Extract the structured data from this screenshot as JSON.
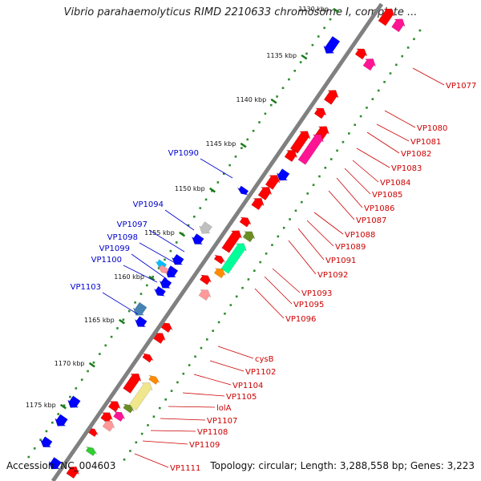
{
  "title": "Vibrio parahaemolyticus RIMD 2210633 chromosome I, complete ...",
  "footer": {
    "accession": "Accession: NC_004603",
    "summary": "Topology: circular; Length: 3,288,558 bp; Genes: 3,223"
  },
  "colors": {
    "backbone": "#808080",
    "tick": "#2e8b2e",
    "forward_gene": "#ff0000",
    "reverse_gene": "#0000ff",
    "forward_label": "#cc0000",
    "reverse_label": "#0000cc",
    "other_gene_colors": [
      "#ff1493",
      "#00ff99",
      "#ff8c00",
      "#6b8e23",
      "#f0e68c",
      "#ff9999",
      "#4682b4",
      "#c0c0c0",
      "#00bfff",
      "#32cd32"
    ]
  },
  "scale": {
    "unit": "kbp",
    "ticks": [
      "1130 kbp",
      "1135 kbp",
      "1140 kbp",
      "1145 kbp",
      "1150 kbp",
      "1155 kbp",
      "1160 kbp",
      "1165 kbp",
      "1170 kbp",
      "1175 kbp"
    ]
  },
  "reverse_strand_labels": [
    "VP1090",
    "VP1094",
    "VP1097",
    "VP1098",
    "VP1099",
    "VP1100",
    "VP1103"
  ],
  "forward_strand_labels": [
    "VP1077",
    "VP1080",
    "VP1081",
    "VP1082",
    "VP1083",
    "VP1084",
    "VP1085",
    "VP1086",
    "VP1087",
    "VP1088",
    "VP1089",
    "VP1091",
    "VP1092",
    "VP1093",
    "VP1095",
    "VP1096",
    "cysB",
    "VP1102",
    "VP1104",
    "VP1105",
    "lolA",
    "VP1107",
    "VP1108",
    "VP1109",
    "VP1111"
  ]
}
